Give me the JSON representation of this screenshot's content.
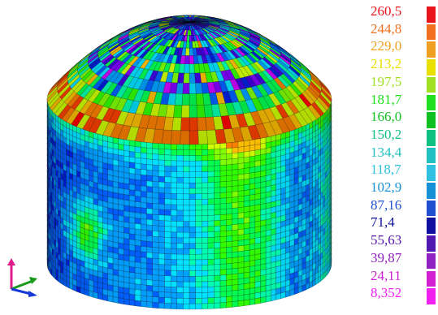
{
  "legend": {
    "labels": [
      "260,5",
      "244,8",
      "229,0",
      "213,2",
      "197,5",
      "181,7",
      "166,0",
      "150,2",
      "134,4",
      "118,7",
      "102,9",
      "87,16",
      "71,4",
      "55,63",
      "39,87",
      "24,11",
      "8,352"
    ],
    "colors": [
      "#e8141c",
      "#f07020",
      "#f0a020",
      "#e8e000",
      "#a0e020",
      "#20e020",
      "#10c020",
      "#10c080",
      "#20c0c0",
      "#30c0e0",
      "#1890d8",
      "#2050d0",
      "#1010a0",
      "#5018b0",
      "#9020c0",
      "#d020d0",
      "#f020f0"
    ]
  },
  "model": {
    "palette": [
      "#ff0000",
      "#ff4000",
      "#ff8000",
      "#ffc000",
      "#d0ff00",
      "#80ff00",
      "#30ff00",
      "#00ff50",
      "#00ffb0",
      "#00e0ff",
      "#00a0ff",
      "#0060ff",
      "#0020e0",
      "#4000e0",
      "#8000ff",
      "#d000ff",
      "#ff00ff"
    ]
  },
  "triad": {
    "colors": {
      "x": "#1a9a1a",
      "y": "#1a3ad8",
      "z": "#e01c8c"
    }
  }
}
